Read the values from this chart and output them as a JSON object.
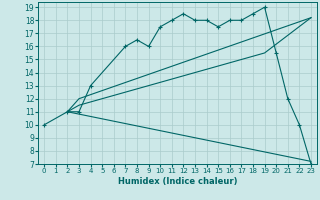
{
  "xlabel": "Humidex (Indice chaleur)",
  "bg_color": "#cce8e8",
  "line_color": "#006666",
  "grid_color": "#aacccc",
  "xlim": [
    -0.5,
    23.5
  ],
  "ylim": [
    7,
    19.4
  ],
  "xticks": [
    0,
    1,
    2,
    3,
    4,
    5,
    6,
    7,
    8,
    9,
    10,
    11,
    12,
    13,
    14,
    15,
    16,
    17,
    18,
    19,
    20,
    21,
    22,
    23
  ],
  "yticks": [
    7,
    8,
    9,
    10,
    11,
    12,
    13,
    14,
    15,
    16,
    17,
    18,
    19
  ],
  "line1_x": [
    0,
    2,
    3,
    4,
    7,
    8,
    9,
    10,
    11,
    12,
    13,
    14,
    15,
    16,
    17,
    18,
    19,
    20,
    21,
    22,
    23
  ],
  "line1_y": [
    10,
    11,
    11,
    13,
    16,
    16.5,
    16,
    17.5,
    18.0,
    18.5,
    18.0,
    18.0,
    17.5,
    18.0,
    18.0,
    18.5,
    19.0,
    15.5,
    12.0,
    10.0,
    7.0
  ],
  "line2_x": [
    2,
    3,
    19,
    23
  ],
  "line2_y": [
    11,
    11.5,
    15.5,
    18.2
  ],
  "line3_x": [
    2,
    3,
    23
  ],
  "line3_y": [
    11,
    12,
    18.2
  ]
}
